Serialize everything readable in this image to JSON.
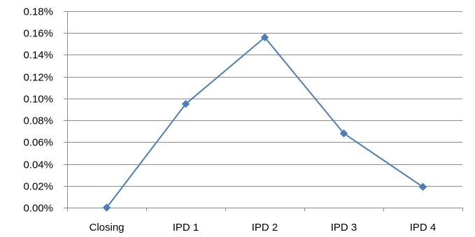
{
  "chart_data": {
    "type": "line",
    "categories": [
      "Closing",
      "IPD 1",
      "IPD 2",
      "IPD 3",
      "IPD 4"
    ],
    "series": [
      {
        "values": [
          0.0,
          0.095,
          0.156,
          0.068,
          0.019
        ]
      }
    ],
    "y_tick_labels": [
      "0.00%",
      "0.02%",
      "0.04%",
      "0.06%",
      "0.08%",
      "0.10%",
      "0.12%",
      "0.14%",
      "0.16%",
      "0.18%"
    ],
    "ylim": [
      0,
      0.18
    ],
    "y_unit": "%",
    "grid": "horizontal",
    "legend": "none",
    "line_color": "#4a7ebb",
    "marker": "diamond",
    "marker_color": "#4a7ebb"
  }
}
